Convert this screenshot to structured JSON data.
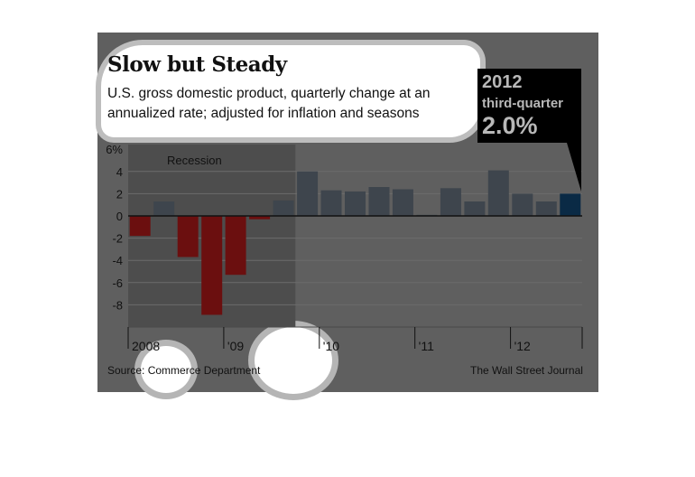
{
  "header": {
    "title": "Slow but Steady",
    "subtitle": "U.S. gross domestic product, quarterly change at an annualized rate; adjusted for inflation and seasons"
  },
  "callout": {
    "year": "2012",
    "label": "third-quarter",
    "value": "2.0%"
  },
  "footer": {
    "source": "Source: Commerce Department",
    "credit": "The Wall Street Journal"
  },
  "colors": {
    "panel": "#5f5f5f",
    "recession_shade": "#4d4d4d",
    "negative_bar": "#6b0f0f",
    "positive_bar": "#3e454d",
    "highlight_bar": "#0a2a45",
    "gridline": "#6c6c6c",
    "zero_line": "#111111"
  },
  "chart_data": {
    "type": "bar",
    "title": "Slow but Steady",
    "ylabel": "",
    "xlabel": "",
    "ylim": [
      -10,
      6
    ],
    "yticks": [
      {
        "value": 6,
        "label": "6%"
      },
      {
        "value": 4,
        "label": "4"
      },
      {
        "value": 2,
        "label": "2"
      },
      {
        "value": 0,
        "label": "0"
      },
      {
        "value": -2,
        "label": "-2"
      },
      {
        "value": -4,
        "label": "-4"
      },
      {
        "value": -6,
        "label": "-6"
      },
      {
        "value": -8,
        "label": "-8"
      }
    ],
    "grid": true,
    "categories": [
      "2008 Q1",
      "2008 Q2",
      "2008 Q3",
      "2008 Q4",
      "2009 Q1",
      "2009 Q2",
      "2009 Q3",
      "2009 Q4",
      "2010 Q1",
      "2010 Q2",
      "2010 Q3",
      "2010 Q4",
      "2011 Q1",
      "2011 Q2",
      "2011 Q3",
      "2011 Q4",
      "2012 Q1",
      "2012 Q2",
      "2012 Q3"
    ],
    "values": [
      -1.8,
      1.3,
      -3.7,
      -8.9,
      -5.3,
      -0.3,
      1.4,
      4.0,
      2.3,
      2.2,
      2.6,
      2.4,
      0.1,
      2.5,
      1.3,
      4.1,
      2.0,
      1.3,
      2.0
    ],
    "year_ticks": [
      {
        "label": "2008",
        "start_index": 0
      },
      {
        "label": "'09",
        "start_index": 4
      },
      {
        "label": "'10",
        "start_index": 8
      },
      {
        "label": "'11",
        "start_index": 12
      },
      {
        "label": "'12",
        "start_index": 16
      }
    ],
    "recession": {
      "label": "Recession",
      "start_index": 0,
      "end_index": 6
    },
    "highlight_index": 18
  }
}
